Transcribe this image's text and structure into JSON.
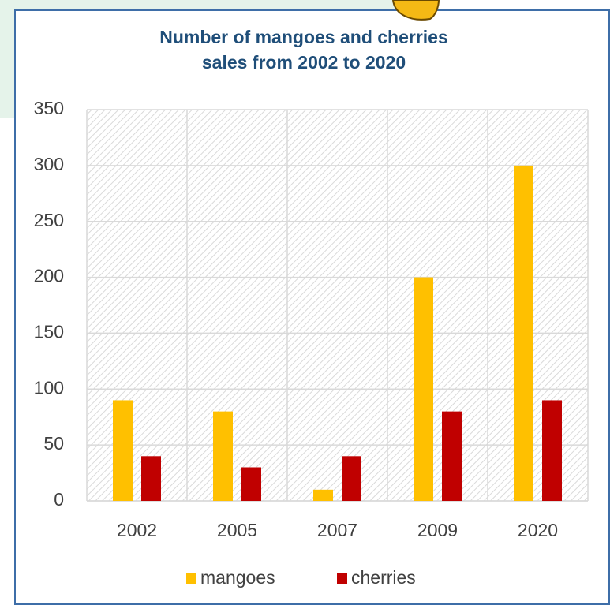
{
  "chart_data": {
    "type": "bar",
    "title": [
      "Number of mangoes and cherries",
      "sales from 2002 to 2020"
    ],
    "categories": [
      "2002",
      "2005",
      "2007",
      "2009",
      "2020"
    ],
    "series": [
      {
        "name": "mangoes",
        "color": "#ffc000",
        "values": [
          90,
          80,
          10,
          200,
          300
        ]
      },
      {
        "name": "cherries",
        "color": "#c00000",
        "values": [
          40,
          30,
          40,
          80,
          90
        ]
      }
    ],
    "ylim": [
      0,
      350
    ],
    "yticks": [
      0,
      50,
      100,
      150,
      200,
      250,
      300,
      350
    ],
    "grid": true,
    "legend": "bottom"
  }
}
